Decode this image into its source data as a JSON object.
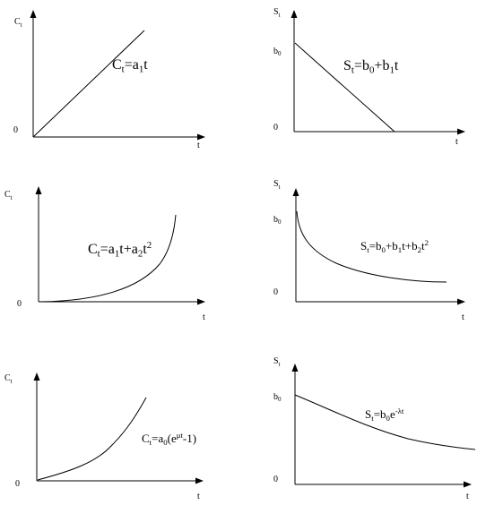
{
  "panels": [
    {
      "id": "p1",
      "y_label": {
        "main": "C",
        "sub": "t"
      },
      "x_label": "t",
      "origin_label": "0",
      "formula": [
        {
          "t": "C",
          "s": "n"
        },
        {
          "t": "t",
          "s": "sub"
        },
        {
          "t": "=a",
          "s": "n"
        },
        {
          "t": "1",
          "s": "sub"
        },
        {
          "t": "t",
          "s": "n"
        }
      ]
    },
    {
      "id": "p2",
      "y_label": {
        "main": "S",
        "sub": "t"
      },
      "x_label": "t",
      "origin_label": "0",
      "b0_label": {
        "main": "b",
        "sub": "0"
      },
      "formula": [
        {
          "t": "S",
          "s": "n"
        },
        {
          "t": "t",
          "s": "sub"
        },
        {
          "t": "=b",
          "s": "n"
        },
        {
          "t": "0",
          "s": "sub"
        },
        {
          "t": "+b",
          "s": "n"
        },
        {
          "t": "1",
          "s": "sub"
        },
        {
          "t": "t",
          "s": "n"
        }
      ]
    },
    {
      "id": "p3",
      "y_label": {
        "main": "C",
        "sub": "t"
      },
      "x_label": "t",
      "origin_label": "0",
      "formula": [
        {
          "t": "C",
          "s": "n"
        },
        {
          "t": "t",
          "s": "sub"
        },
        {
          "t": "=a",
          "s": "n"
        },
        {
          "t": "1",
          "s": "sub"
        },
        {
          "t": "t+a",
          "s": "n"
        },
        {
          "t": "2",
          "s": "sub"
        },
        {
          "t": "t",
          "s": "n"
        },
        {
          "t": "2",
          "s": "sup"
        }
      ]
    },
    {
      "id": "p4",
      "y_label": {
        "main": "S",
        "sub": "t"
      },
      "x_label": "t",
      "origin_label": "0",
      "b0_label": {
        "main": "b",
        "sub": "0"
      },
      "formula": [
        {
          "t": "S",
          "s": "n"
        },
        {
          "t": "t",
          "s": "sub"
        },
        {
          "t": "=b",
          "s": "n"
        },
        {
          "t": "0",
          "s": "sub"
        },
        {
          "t": "+b",
          "s": "n"
        },
        {
          "t": "1",
          "s": "sub"
        },
        {
          "t": "t+b",
          "s": "n"
        },
        {
          "t": "2",
          "s": "sub"
        },
        {
          "t": "t",
          "s": "n"
        },
        {
          "t": "2",
          "s": "sup"
        }
      ]
    },
    {
      "id": "p5",
      "y_label": {
        "main": "C",
        "sub": "t"
      },
      "x_label": "t",
      "origin_label": "0",
      "formula": [
        {
          "t": "C",
          "s": "n"
        },
        {
          "t": "t",
          "s": "sub"
        },
        {
          "t": "=a",
          "s": "n"
        },
        {
          "t": "0",
          "s": "sub"
        },
        {
          "t": "(e",
          "s": "n"
        },
        {
          "t": "μt",
          "s": "sup"
        },
        {
          "t": "-1)",
          "s": "n"
        }
      ]
    },
    {
      "id": "p6",
      "y_label": {
        "main": "S",
        "sub": "t"
      },
      "x_label": "t",
      "origin_label": "0",
      "b0_label": {
        "main": "b",
        "sub": "0"
      },
      "formula": [
        {
          "t": "S",
          "s": "n"
        },
        {
          "t": "t",
          "s": "sub"
        },
        {
          "t": "=b",
          "s": "n"
        },
        {
          "t": "0",
          "s": "sub"
        },
        {
          "t": "e",
          "s": "n"
        },
        {
          "t": "-λt",
          "s": "sup"
        }
      ]
    }
  ]
}
